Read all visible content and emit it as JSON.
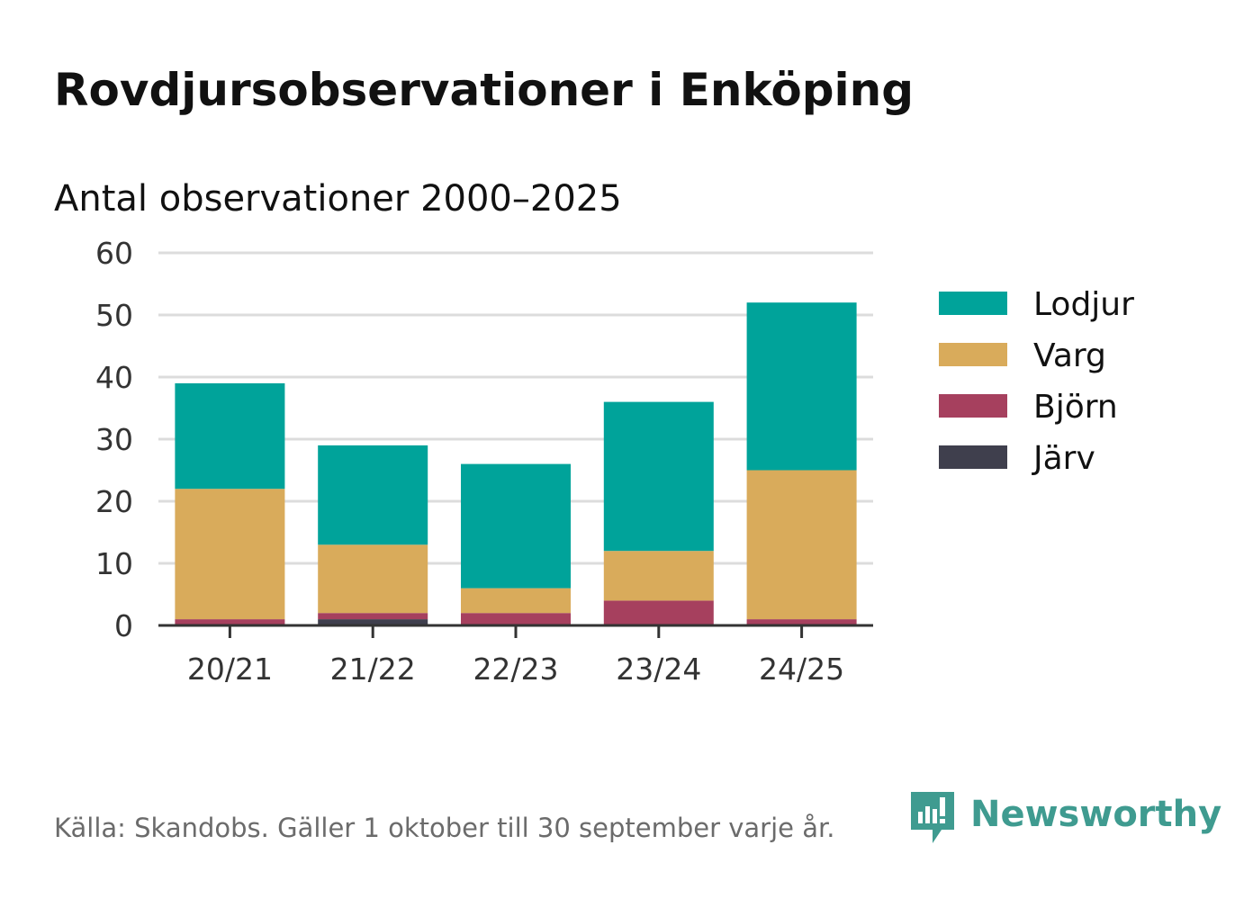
{
  "title": "Rovdjursobservationer i Enköping",
  "subtitle": "Antal observationer 2000–2025",
  "source": "Källa: Skandobs. Gäller 1 oktober till 30 september varje år.",
  "brand": {
    "name": "Newsworthy",
    "icon": "newsworthy-logo-icon",
    "color": "#3f9b90"
  },
  "chart_data": {
    "type": "bar",
    "stacked": true,
    "title": "Rovdjursobservationer i Enköping",
    "subtitle": "Antal observationer 2000–2025",
    "xlabel": "",
    "ylabel": "",
    "categories": [
      "20/21",
      "21/22",
      "22/23",
      "23/24",
      "24/25"
    ],
    "ylim": [
      0,
      60
    ],
    "yticks": [
      0,
      10,
      20,
      30,
      40,
      50,
      60
    ],
    "grid": true,
    "legend_position": "right",
    "series": [
      {
        "name": "Järv",
        "color": "#3f3f4d",
        "values": [
          0,
          1,
          0,
          0,
          0
        ]
      },
      {
        "name": "Björn",
        "color": "#a6405e",
        "values": [
          1,
          1,
          2,
          4,
          1
        ]
      },
      {
        "name": "Varg",
        "color": "#d9ab5b",
        "values": [
          21,
          11,
          4,
          8,
          24
        ]
      },
      {
        "name": "Lodjur",
        "color": "#00a39a",
        "values": [
          17,
          16,
          20,
          24,
          27
        ]
      }
    ],
    "legend_order": [
      "Lodjur",
      "Varg",
      "Björn",
      "Järv"
    ]
  }
}
